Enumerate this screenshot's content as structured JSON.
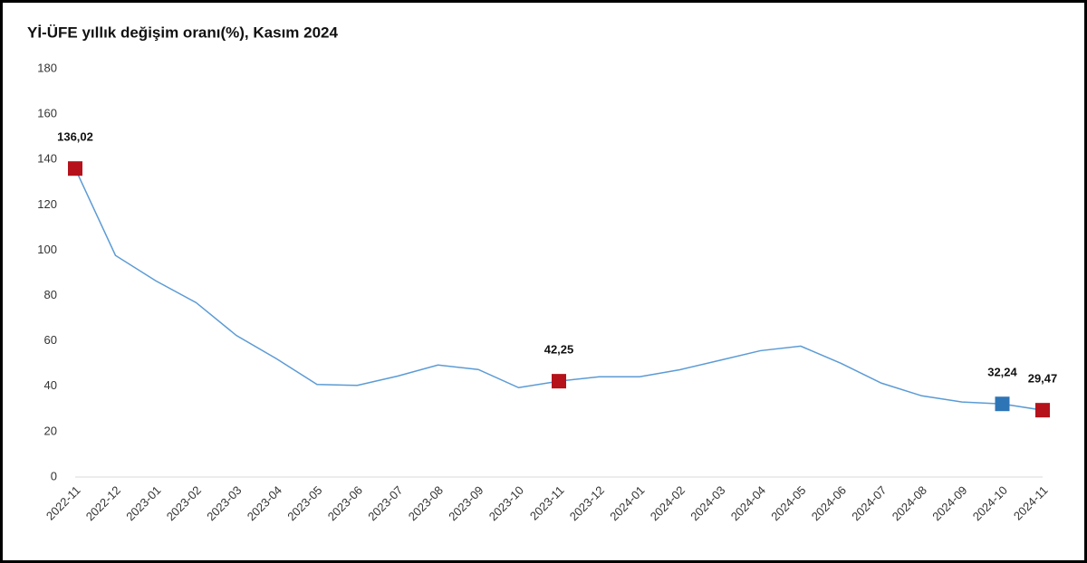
{
  "chart_data": {
    "type": "line",
    "title": "Yİ-ÜFE yıllık değişim oranı(%), Kasım 2024",
    "categories": [
      "2022-11",
      "2022-12",
      "2023-01",
      "2023-02",
      "2023-03",
      "2023-04",
      "2023-05",
      "2023-06",
      "2023-07",
      "2023-08",
      "2023-09",
      "2023-10",
      "2023-11",
      "2023-12",
      "2024-01",
      "2024-02",
      "2024-03",
      "2024-04",
      "2024-05",
      "2024-06",
      "2024-07",
      "2024-08",
      "2024-09",
      "2024-10",
      "2024-11"
    ],
    "values": [
      136.02,
      97.7,
      86.5,
      76.9,
      62.4,
      52.1,
      40.8,
      40.4,
      44.5,
      49.4,
      47.4,
      39.4,
      42.25,
      44.2,
      44.2,
      47.3,
      51.5,
      55.7,
      57.7,
      50.1,
      41.4,
      35.8,
      33.1,
      32.24,
      29.47
    ],
    "value_labels": [
      "136,02",
      null,
      null,
      null,
      null,
      null,
      null,
      null,
      null,
      null,
      null,
      null,
      "42,25",
      null,
      null,
      null,
      null,
      null,
      null,
      null,
      null,
      null,
      null,
      "32,24",
      "29,47"
    ],
    "marker_colors": [
      "#b5121b",
      null,
      null,
      null,
      null,
      null,
      null,
      null,
      null,
      null,
      null,
      null,
      "#b5121b",
      null,
      null,
      null,
      null,
      null,
      null,
      null,
      null,
      null,
      null,
      "#2e75b6",
      "#b5121b"
    ],
    "color": "#5b9bd5",
    "ylim": [
      0,
      180
    ],
    "yticks": [
      0,
      20,
      40,
      60,
      80,
      100,
      120,
      140,
      160,
      180
    ],
    "grid": false
  }
}
